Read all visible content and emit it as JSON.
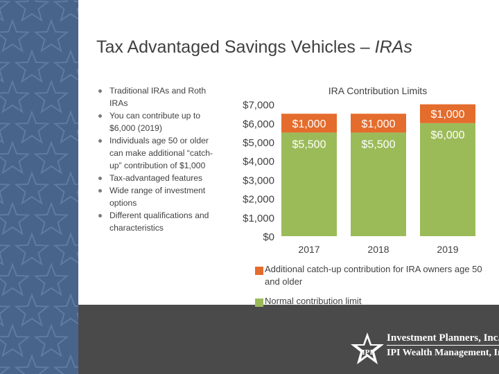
{
  "slide": {
    "title_main": "Tax Advantaged Savings Vehicles – ",
    "title_italic": "IRAs",
    "bullets": [
      "Traditional IRAs and Roth IRAs",
      "You can contribute up to $6,000 (2019)",
      "Individuals age 50 or older can make additional “catch-up” contribution of $1,000",
      "Tax-advantaged features",
      "Wide range of investment options",
      "Different qualifications and characteristics"
    ]
  },
  "logo": {
    "line1": "Investment Planners, Inc.",
    "line2": "IPI Wealth Management, Inc.",
    "mark": "IPI"
  },
  "chart_data": {
    "type": "bar",
    "stacked": true,
    "title": "IRA Contribution Limits",
    "categories": [
      "2017",
      "2018",
      "2019"
    ],
    "series": [
      {
        "name": "Normal contribution limit",
        "values": [
          5500,
          5500,
          6000
        ],
        "labels": [
          "$5,500",
          "$5,500",
          "$6,000"
        ],
        "color": "#9bbb59"
      },
      {
        "name": "Additional catch-up contribution for IRA owners age 50 and older",
        "values": [
          1000,
          1000,
          1000
        ],
        "labels": [
          "$1,000",
          "$1,000",
          "$1,000"
        ],
        "color": "#e46c2d"
      }
    ],
    "y_ticks": [
      "$0",
      "$1,000",
      "$2,000",
      "$3,000",
      "$4,000",
      "$5,000",
      "$6,000",
      "$7,000"
    ],
    "ylim": [
      0,
      7000
    ],
    "grid": false,
    "legend_position": "bottom"
  },
  "colors": {
    "sidebar": "#48648a",
    "footer": "#4a4a4a",
    "normal": "#9bbb59",
    "catch_up": "#e46c2d"
  }
}
